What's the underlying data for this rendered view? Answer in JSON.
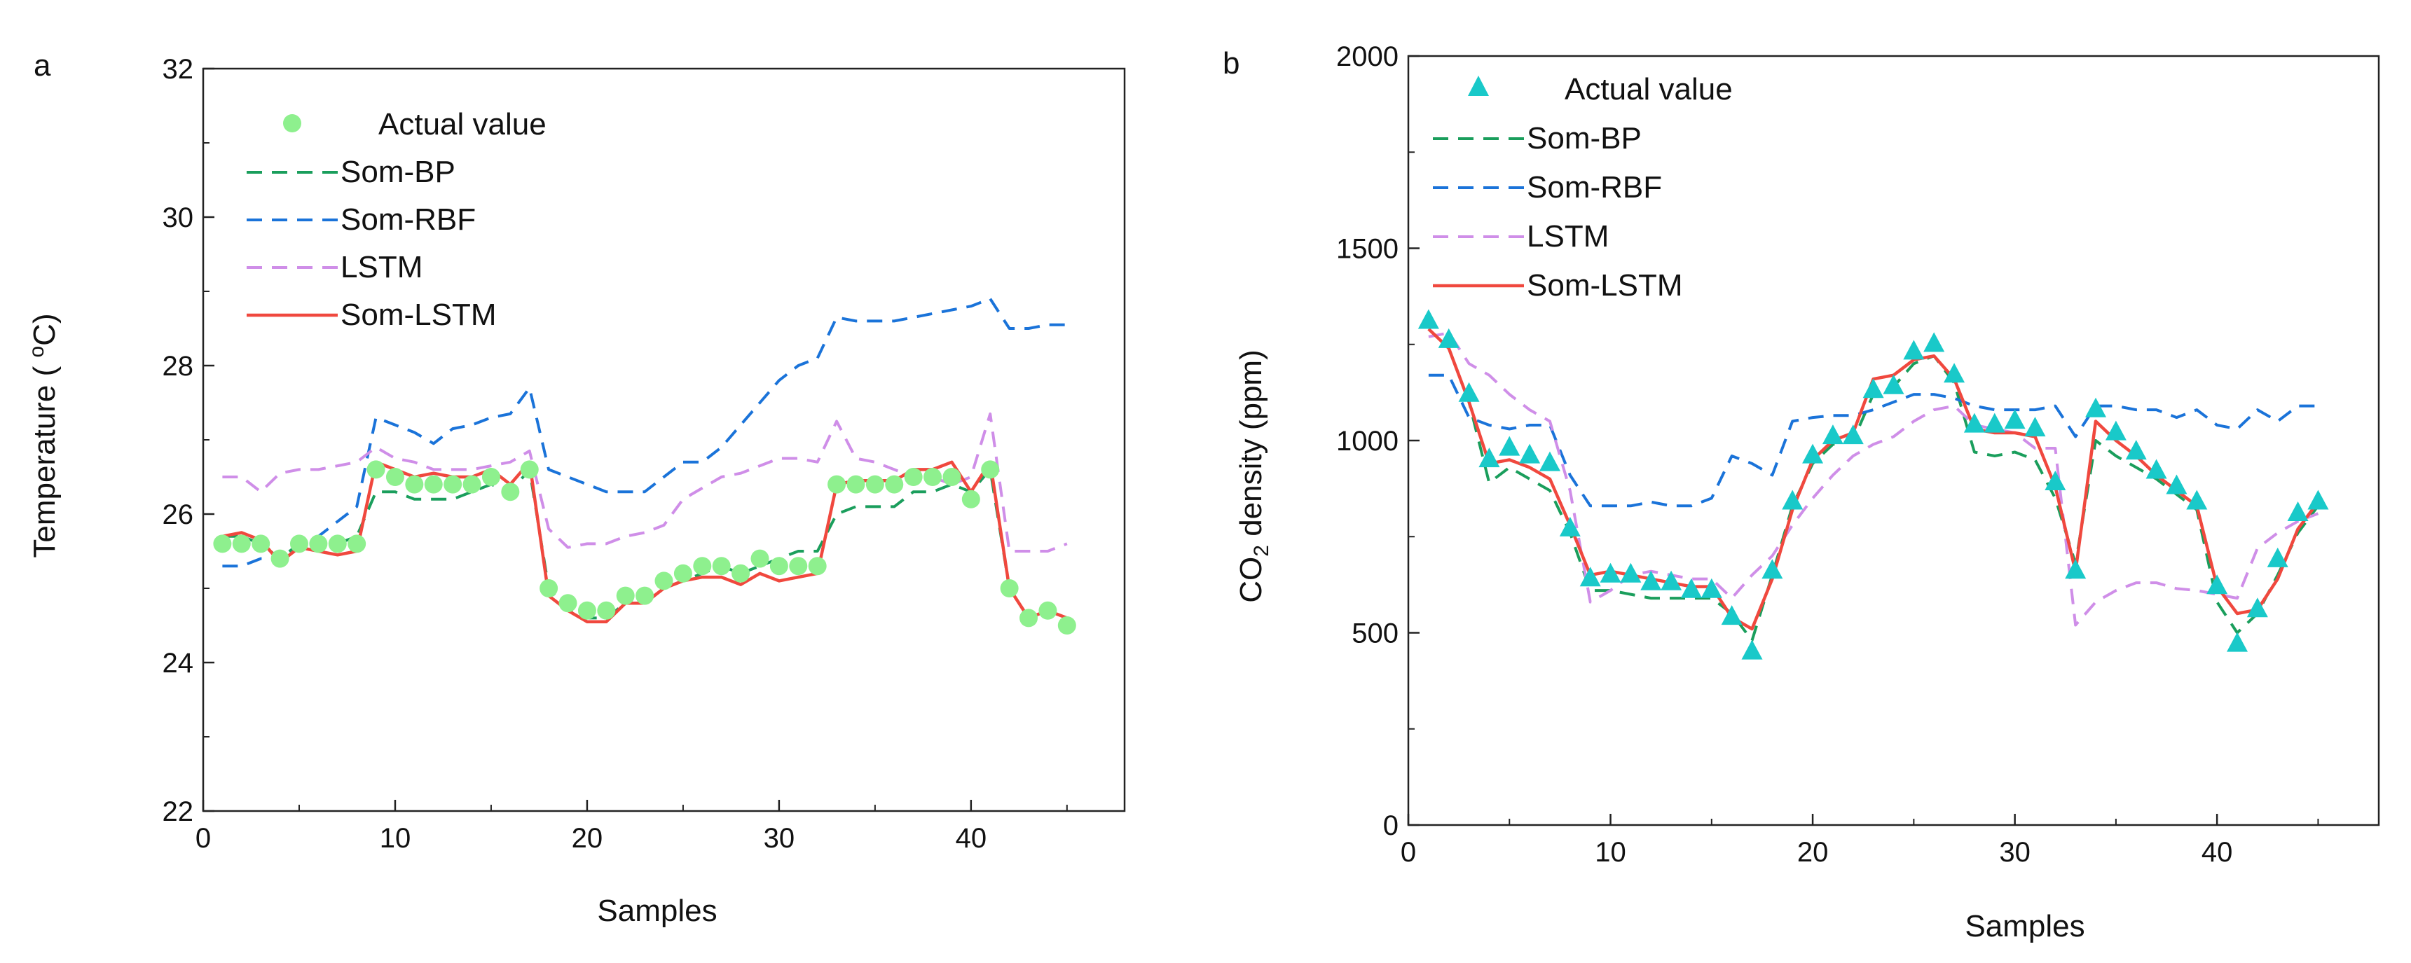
{
  "chart_data": [
    {
      "panel": "a",
      "type": "line",
      "title": "",
      "xlabel": "Samples",
      "ylabel_pre": "Temperature ( ",
      "ylabel_sup": "o",
      "ylabel_post": "C)",
      "xlim": [
        0,
        48
      ],
      "ylim": [
        22,
        32
      ],
      "xticks": [
        0,
        10,
        20,
        30,
        40
      ],
      "yticks": [
        22,
        24,
        26,
        28,
        30,
        32
      ],
      "legend_position": "top-left",
      "actual": {
        "name": "Actual value",
        "marker": "circle",
        "color": "#8ef08e",
        "x": [
          1,
          2,
          3,
          4,
          5,
          6,
          7,
          8,
          9,
          10,
          11,
          12,
          13,
          14,
          15,
          16,
          17,
          18,
          19,
          20,
          21,
          22,
          23,
          24,
          25,
          26,
          27,
          28,
          29,
          30,
          31,
          32,
          33,
          34,
          35,
          36,
          37,
          38,
          39,
          40,
          41,
          42,
          43,
          44,
          45
        ],
        "y": [
          25.6,
          25.6,
          25.6,
          25.4,
          25.6,
          25.6,
          25.6,
          25.6,
          26.6,
          26.5,
          26.4,
          26.4,
          26.4,
          26.4,
          26.5,
          26.3,
          26.6,
          25.0,
          24.8,
          24.7,
          24.7,
          24.9,
          24.9,
          25.1,
          25.2,
          25.3,
          25.3,
          25.2,
          25.4,
          25.3,
          25.3,
          25.3,
          26.4,
          26.4,
          26.4,
          26.4,
          26.5,
          26.5,
          26.5,
          26.2,
          26.6,
          25.0,
          24.6,
          24.7,
          24.5
        ]
      },
      "series": [
        {
          "name": "Som-BP",
          "color": "#1a9e5c",
          "dash": "22,14",
          "values": [
            25.7,
            25.7,
            25.6,
            25.4,
            25.6,
            25.6,
            25.6,
            25.7,
            26.3,
            26.3,
            26.2,
            26.2,
            26.2,
            26.3,
            26.4,
            26.3,
            26.6,
            25.0,
            24.7,
            24.6,
            24.6,
            24.8,
            24.8,
            25.0,
            25.1,
            25.2,
            25.3,
            25.2,
            25.3,
            25.4,
            25.5,
            25.5,
            26.0,
            26.1,
            26.1,
            26.1,
            26.3,
            26.3,
            26.4,
            26.3,
            26.6,
            25.0,
            24.6,
            24.7,
            24.6
          ]
        },
        {
          "name": "Som-RBF",
          "color": "#1a73d9",
          "dash": "22,14",
          "values": [
            25.3,
            25.3,
            25.4,
            25.4,
            25.6,
            25.7,
            25.9,
            26.1,
            27.3,
            27.2,
            27.1,
            26.95,
            27.15,
            27.2,
            27.3,
            27.35,
            27.7,
            26.6,
            26.5,
            26.4,
            26.3,
            26.3,
            26.3,
            26.5,
            26.7,
            26.7,
            26.9,
            27.2,
            27.5,
            27.8,
            28.0,
            28.1,
            28.65,
            28.6,
            28.6,
            28.6,
            28.65,
            28.7,
            28.75,
            28.8,
            28.9,
            28.5,
            28.5,
            28.55,
            28.55
          ]
        },
        {
          "name": "LSTM",
          "color": "#cf8ee8",
          "dash": "22,14",
          "values": [
            26.5,
            26.5,
            26.3,
            26.55,
            26.6,
            26.6,
            26.65,
            26.7,
            26.9,
            26.75,
            26.7,
            26.6,
            26.6,
            26.6,
            26.65,
            26.7,
            26.85,
            25.8,
            25.55,
            25.6,
            25.6,
            25.7,
            25.75,
            25.85,
            26.2,
            26.35,
            26.5,
            26.55,
            26.65,
            26.75,
            26.75,
            26.7,
            27.25,
            26.75,
            26.7,
            26.6,
            26.5,
            26.5,
            26.4,
            26.5,
            27.35,
            25.5,
            25.5,
            25.5,
            25.6
          ]
        },
        {
          "name": "Som-LSTM",
          "color": "#f0483e",
          "dash": "none",
          "values": [
            25.7,
            25.75,
            25.65,
            25.35,
            25.55,
            25.5,
            25.45,
            25.5,
            26.7,
            26.6,
            26.5,
            26.55,
            26.5,
            26.5,
            26.6,
            26.4,
            26.7,
            24.9,
            24.7,
            24.55,
            24.55,
            24.8,
            24.8,
            25.0,
            25.1,
            25.15,
            25.15,
            25.05,
            25.2,
            25.1,
            25.15,
            25.2,
            26.4,
            26.45,
            26.45,
            26.45,
            26.6,
            26.6,
            26.7,
            26.3,
            26.7,
            25.0,
            24.6,
            24.7,
            24.6
          ]
        }
      ]
    },
    {
      "panel": "b",
      "type": "line",
      "title": "",
      "xlabel": "Samples",
      "ylabel_pre": "CO",
      "ylabel_sub": "2",
      "ylabel_post": " density (ppm)",
      "xlim": [
        0,
        48
      ],
      "ylim": [
        0,
        2000
      ],
      "xticks": [
        0,
        10,
        20,
        30,
        40
      ],
      "yticks": [
        0,
        500,
        1000,
        1500,
        2000
      ],
      "legend_position": "top-left",
      "actual": {
        "name": "Actual value",
        "marker": "triangle",
        "color": "#19c9c9",
        "x": [
          1,
          2,
          3,
          4,
          5,
          6,
          7,
          8,
          9,
          10,
          11,
          12,
          13,
          14,
          15,
          16,
          17,
          18,
          19,
          20,
          21,
          22,
          23,
          24,
          25,
          26,
          27,
          28,
          29,
          30,
          31,
          32,
          33,
          34,
          35,
          36,
          37,
          38,
          39,
          40,
          41,
          42,
          43,
          44,
          45
        ],
        "y": [
          1310,
          1260,
          1120,
          950,
          980,
          960,
          940,
          770,
          640,
          650,
          650,
          630,
          630,
          610,
          610,
          540,
          450,
          660,
          840,
          960,
          1010,
          1010,
          1130,
          1140,
          1230,
          1250,
          1170,
          1040,
          1040,
          1050,
          1030,
          890,
          660,
          1080,
          1020,
          970,
          920,
          880,
          840,
          620,
          470,
          560,
          690,
          810,
          840
        ]
      },
      "series": [
        {
          "name": "Som-BP",
          "color": "#1a9e5c",
          "dash": "22,14",
          "values": [
            1290,
            1240,
            1100,
            890,
            930,
            900,
            870,
            760,
            610,
            610,
            600,
            590,
            590,
            590,
            590,
            550,
            480,
            650,
            830,
            940,
            990,
            1000,
            1120,
            1140,
            1200,
            1220,
            1150,
            970,
            960,
            970,
            950,
            850,
            680,
            1000,
            960,
            930,
            900,
            860,
            820,
            580,
            500,
            550,
            650,
            760,
            830
          ]
        },
        {
          "name": "Som-RBF",
          "color": "#1a73d9",
          "dash": "22,14",
          "values": [
            1170,
            1170,
            1060,
            1040,
            1030,
            1040,
            1040,
            910,
            830,
            830,
            830,
            840,
            830,
            830,
            850,
            960,
            940,
            910,
            1050,
            1060,
            1065,
            1065,
            1080,
            1100,
            1120,
            1120,
            1110,
            1090,
            1080,
            1080,
            1080,
            1090,
            1010,
            1090,
            1090,
            1080,
            1080,
            1060,
            1080,
            1040,
            1030,
            1080,
            1050,
            1090,
            1090
          ]
        },
        {
          "name": "LSTM",
          "color": "#cf8ee8",
          "dash": "22,14",
          "values": [
            1270,
            1280,
            1200,
            1170,
            1120,
            1080,
            1050,
            870,
            580,
            610,
            650,
            660,
            650,
            640,
            640,
            590,
            650,
            700,
            780,
            850,
            910,
            960,
            990,
            1010,
            1050,
            1080,
            1090,
            1040,
            1030,
            1020,
            980,
            980,
            520,
            580,
            610,
            630,
            630,
            615,
            610,
            600,
            590,
            720,
            760,
            790,
            810
          ]
        },
        {
          "name": "Som-LSTM",
          "color": "#f0483e",
          "dash": "none",
          "values": [
            1290,
            1240,
            1100,
            940,
            950,
            930,
            900,
            780,
            650,
            660,
            650,
            640,
            630,
            620,
            620,
            540,
            510,
            640,
            820,
            950,
            1000,
            1020,
            1160,
            1170,
            1210,
            1220,
            1160,
            1030,
            1020,
            1020,
            1010,
            880,
            660,
            1050,
            1000,
            960,
            910,
            870,
            830,
            620,
            550,
            560,
            640,
            770,
            840
          ]
        }
      ]
    }
  ]
}
